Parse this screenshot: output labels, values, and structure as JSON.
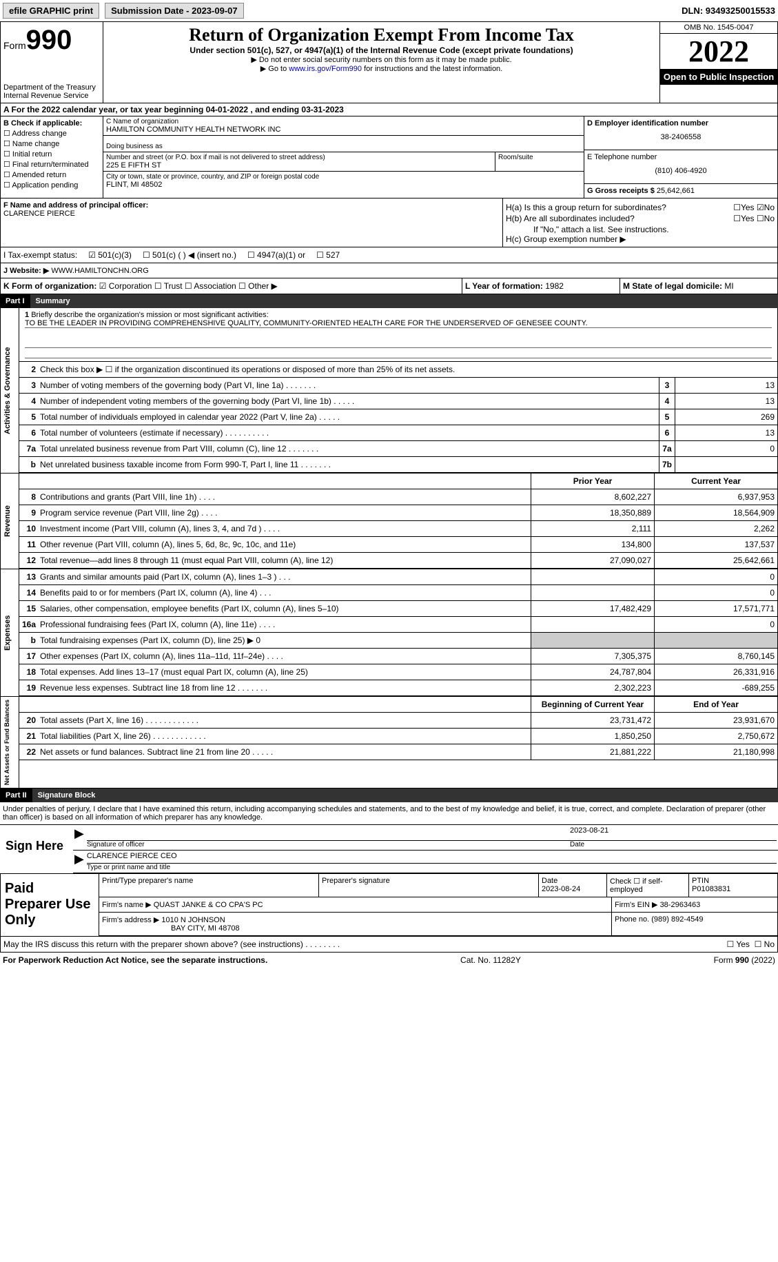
{
  "topbar": {
    "efile": "efile GRAPHIC print",
    "submission_label": "Submission Date - ",
    "submission_date": "2023-09-07",
    "dln_label": "DLN: ",
    "dln": "93493250015533"
  },
  "header": {
    "form_label": "Form",
    "form_number": "990",
    "dept": "Department of the Treasury",
    "irs": "Internal Revenue Service",
    "title": "Return of Organization Exempt From Income Tax",
    "subtitle": "Under section 501(c), 527, or 4947(a)(1) of the Internal Revenue Code (except private foundations)",
    "instr1": "▶ Do not enter social security numbers on this form as it may be made public.",
    "instr2_pre": "▶ Go to ",
    "instr2_link": "www.irs.gov/Form990",
    "instr2_post": " for instructions and the latest information.",
    "omb": "OMB No. 1545-0047",
    "year": "2022",
    "open": "Open to Public Inspection"
  },
  "row_a": {
    "text_pre": "A For the 2022 calendar year, or tax year beginning ",
    "begin": "04-01-2022",
    "text_mid": " , and ending ",
    "end": "03-31-2023"
  },
  "col_b": {
    "label": "B Check if applicable:",
    "items": [
      "Address change",
      "Name change",
      "Initial return",
      "Final return/terminated",
      "Amended return",
      "Application pending"
    ]
  },
  "col_c": {
    "name_label": "C Name of organization",
    "org_name": "HAMILTON COMMUNITY HEALTH NETWORK INC",
    "dba_label": "Doing business as",
    "street_label": "Number and street (or P.O. box if mail is not delivered to street address)",
    "street": "225 E FIFTH ST",
    "room_label": "Room/suite",
    "city_label": "City or town, state or province, country, and ZIP or foreign postal code",
    "city": "FLINT, MI  48502"
  },
  "col_d": {
    "ein_label": "D Employer identification number",
    "ein": "38-2406558",
    "tel_label": "E Telephone number",
    "tel": "(810) 406-4920",
    "gross_label": "G Gross receipts $ ",
    "gross": "25,642,661"
  },
  "col_f": {
    "label": "F Name and address of principal officer:",
    "name": "CLARENCE PIERCE"
  },
  "col_h": {
    "ha_label": "H(a)  Is this a group return for subordinates?",
    "hb_label": "H(b)  Are all subordinates included?",
    "hb_note": "If \"No,\" attach a list. See instructions.",
    "hc_label": "H(c)  Group exemption number ▶",
    "yes": "Yes",
    "no": "No"
  },
  "tax_status": {
    "label": "I   Tax-exempt status:",
    "opt1": "501(c)(3)",
    "opt2": "501(c) (   ) ◀ (insert no.)",
    "opt3": "4947(a)(1) or",
    "opt4": "527"
  },
  "website": {
    "label": "J   Website: ▶",
    "value": "WWW.HAMILTONCHN.ORG"
  },
  "block_k": {
    "k_label": "K Form of organization:",
    "k_opts": [
      "Corporation",
      "Trust",
      "Association",
      "Other ▶"
    ],
    "l_label": "L Year of formation: ",
    "l_val": "1982",
    "m_label": "M State of legal domicile: ",
    "m_val": "MI"
  },
  "part1": {
    "num": "Part I",
    "title": "Summary"
  },
  "mission": {
    "num": "1",
    "label": "Briefly describe the organization's mission or most significant activities:",
    "text": "TO BE THE LEADER IN PROVIDING COMPREHENSHIVE QUALITY, COMMUNITY-ORIENTED HEALTH CARE FOR THE UNDERSERVED OF GENESEE COUNTY."
  },
  "activities": {
    "label": "Activities & Governance",
    "rows": [
      {
        "n": "2",
        "d": "Check this box ▶ ☐ if the organization discontinued its operations or disposed of more than 25% of its net assets."
      },
      {
        "n": "3",
        "d": "Number of voting members of the governing body (Part VI, line 1a)   .    .    .    .    .    .    .",
        "box": "3",
        "v": "13"
      },
      {
        "n": "4",
        "d": "Number of independent voting members of the governing body (Part VI, line 1b)   .    .    .    .    .",
        "box": "4",
        "v": "13"
      },
      {
        "n": "5",
        "d": "Total number of individuals employed in calendar year 2022 (Part V, line 2a)   .    .    .    .    .",
        "box": "5",
        "v": "269"
      },
      {
        "n": "6",
        "d": "Total number of volunteers (estimate if necessary)    .    .    .    .    .    .    .    .    .    .",
        "box": "6",
        "v": "13"
      },
      {
        "n": "7a",
        "d": "Total unrelated business revenue from Part VIII, column (C), line 12   .    .    .    .    .    .    .",
        "box": "7a",
        "v": "0"
      },
      {
        "n": "b",
        "d": "Net unrelated business taxable income from Form 990-T, Part I, line 11   .    .    .    .    .    .    .",
        "box": "7b",
        "v": ""
      }
    ]
  },
  "fin_header": {
    "prior": "Prior Year",
    "curr": "Current Year"
  },
  "revenue": {
    "label": "Revenue",
    "rows": [
      {
        "n": "8",
        "d": "Contributions and grants (Part VIII, line 1h)   .    .    .    .",
        "p": "8,602,227",
        "c": "6,937,953"
      },
      {
        "n": "9",
        "d": "Program service revenue (Part VIII, line 2g)   .    .    .    .",
        "p": "18,350,889",
        "c": "18,564,909"
      },
      {
        "n": "10",
        "d": "Investment income (Part VIII, column (A), lines 3, 4, and 7d )   .    .    .    .",
        "p": "2,111",
        "c": "2,262"
      },
      {
        "n": "11",
        "d": "Other revenue (Part VIII, column (A), lines 5, 6d, 8c, 9c, 10c, and 11e)",
        "p": "134,800",
        "c": "137,537"
      },
      {
        "n": "12",
        "d": "Total revenue—add lines 8 through 11 (must equal Part VIII, column (A), line 12)",
        "p": "27,090,027",
        "c": "25,642,661"
      }
    ]
  },
  "expenses": {
    "label": "Expenses",
    "rows": [
      {
        "n": "13",
        "d": "Grants and similar amounts paid (Part IX, column (A), lines 1–3 )   .    .    .",
        "p": "",
        "c": "0"
      },
      {
        "n": "14",
        "d": "Benefits paid to or for members (Part IX, column (A), line 4)   .    .    .",
        "p": "",
        "c": "0"
      },
      {
        "n": "15",
        "d": "Salaries, other compensation, employee benefits (Part IX, column (A), lines 5–10)",
        "p": "17,482,429",
        "c": "17,571,771"
      },
      {
        "n": "16a",
        "d": "Professional fundraising fees (Part IX, column (A), line 11e)   .    .    .    .",
        "p": "",
        "c": "0"
      },
      {
        "n": "b",
        "d": "Total fundraising expenses (Part IX, column (D), line 25) ▶ 0",
        "p": "SHADED",
        "c": "SHADED"
      },
      {
        "n": "17",
        "d": "Other expenses (Part IX, column (A), lines 11a–11d, 11f–24e)   .    .    .    .",
        "p": "7,305,375",
        "c": "8,760,145"
      },
      {
        "n": "18",
        "d": "Total expenses. Add lines 13–17 (must equal Part IX, column (A), line 25)",
        "p": "24,787,804",
        "c": "26,331,916"
      },
      {
        "n": "19",
        "d": "Revenue less expenses. Subtract line 18 from line 12   .    .    .    .    .    .    .",
        "p": "2,302,223",
        "c": "-689,255"
      }
    ]
  },
  "netassets_header": {
    "prior": "Beginning of Current Year",
    "curr": "End of Year"
  },
  "netassets": {
    "label": "Net Assets or Fund Balances",
    "rows": [
      {
        "n": "20",
        "d": "Total assets (Part X, line 16)   .    .    .    .    .    .    .    .    .    .    .    .",
        "p": "23,731,472",
        "c": "23,931,670"
      },
      {
        "n": "21",
        "d": "Total liabilities (Part X, line 26)   .    .    .    .    .    .    .    .    .    .    .    .",
        "p": "1,850,250",
        "c": "2,750,672"
      },
      {
        "n": "22",
        "d": "Net assets or fund balances. Subtract line 21 from line 20   .    .    .    .    .",
        "p": "21,881,222",
        "c": "21,180,998"
      }
    ]
  },
  "part2": {
    "num": "Part II",
    "title": "Signature Block"
  },
  "sig": {
    "decl": "Under penalties of perjury, I declare that I have examined this return, including accompanying schedules and statements, and to the best of my knowledge and belief, it is true, correct, and complete. Declaration of preparer (other than officer) is based on all information of which preparer has any knowledge.",
    "sign_here": "Sign Here",
    "sig_officer": "Signature of officer",
    "date_label": "Date",
    "date": "2023-08-21",
    "name": "CLARENCE PIERCE CEO",
    "name_label": "Type or print name and title"
  },
  "preparer": {
    "label": "Paid Preparer Use Only",
    "print_name": "Print/Type preparer's name",
    "prep_sig": "Preparer's signature",
    "date_label": "Date",
    "date": "2023-08-24",
    "check_label": "Check ☐ if self-employed",
    "ptin_label": "PTIN",
    "ptin": "P01083831",
    "firm_name_label": "Firm's name    ▶",
    "firm_name": "QUAST JANKE & CO CPA'S PC",
    "firm_ein_label": "Firm's EIN ▶",
    "firm_ein": "38-2963463",
    "firm_addr_label": "Firm's address ▶",
    "firm_addr1": "1010 N JOHNSON",
    "firm_addr2": "BAY CITY, MI  48708",
    "phone_label": "Phone no. ",
    "phone": "(989) 892-4549"
  },
  "discuss": {
    "text": "May the IRS discuss this return with the preparer shown above? (see instructions)   .    .    .    .    .    .    .    .",
    "yes": "Yes",
    "no": "No"
  },
  "footer": {
    "left": "For Paperwork Reduction Act Notice, see the separate instructions.",
    "mid": "Cat. No. 11282Y",
    "right": "Form 990 (2022)"
  }
}
